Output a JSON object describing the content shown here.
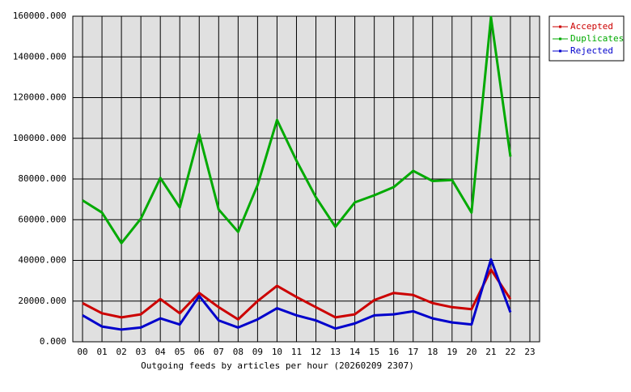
{
  "chart_data": {
    "type": "line",
    "xlabel": "Outgoing feeds by articles per hour (20260209 2307)",
    "categories": [
      "00",
      "01",
      "02",
      "03",
      "04",
      "05",
      "06",
      "07",
      "08",
      "09",
      "10",
      "11",
      "12",
      "13",
      "14",
      "15",
      "16",
      "17",
      "18",
      "19",
      "20",
      "21",
      "22",
      "23"
    ],
    "series": [
      {
        "name": "Accepted",
        "color": "#cc0000",
        "values": [
          19000,
          14000,
          12000,
          13500,
          21000,
          14000,
          24000,
          17000,
          11000,
          20000,
          27500,
          22000,
          17000,
          12000,
          13500,
          20500,
          24000,
          23000,
          19000,
          17000,
          16000,
          35500,
          21000,
          null
        ]
      },
      {
        "name": "Duplicates",
        "color": "#00aa00",
        "values": [
          69500,
          63500,
          48500,
          60500,
          80500,
          66000,
          102000,
          65000,
          54000,
          77000,
          109000,
          89000,
          71000,
          56500,
          68500,
          72000,
          76000,
          84000,
          79000,
          79500,
          63500,
          159500,
          91000,
          null
        ]
      },
      {
        "name": "Rejected",
        "color": "#0000cc",
        "values": [
          13000,
          7500,
          6000,
          7000,
          11500,
          8500,
          22500,
          10500,
          7000,
          11000,
          16500,
          13000,
          10500,
          6500,
          9000,
          13000,
          13500,
          15000,
          11500,
          9500,
          8500,
          40500,
          14500,
          null
        ]
      }
    ],
    "ylim": [
      0,
      160000
    ],
    "yticks": [
      {
        "value": 0,
        "label": "0.000"
      },
      {
        "value": 20000,
        "label": "20000.000"
      },
      {
        "value": 40000,
        "label": "40000.000"
      },
      {
        "value": 60000,
        "label": "60000.000"
      },
      {
        "value": 80000,
        "label": "80000.000"
      },
      {
        "value": 100000,
        "label": "100000.000"
      },
      {
        "value": 120000,
        "label": "120000.000"
      },
      {
        "value": 140000,
        "label": "140000.000"
      },
      {
        "value": 160000,
        "label": "160000.000"
      }
    ],
    "grid": true,
    "legend": "top-right"
  }
}
